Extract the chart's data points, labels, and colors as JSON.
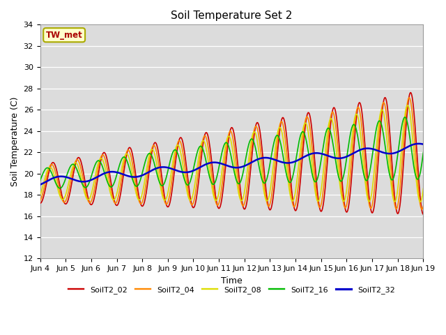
{
  "title": "Soil Temperature Set 2",
  "xlabel": "Time",
  "ylabel": "Soil Temperature (C)",
  "ylim": [
    12,
    34
  ],
  "xlim": [
    0,
    15
  ],
  "x_tick_labels": [
    "Jun 4",
    "Jun 5",
    "Jun 6",
    "Jun 7",
    "Jun 8",
    "Jun 9",
    "Jun 10",
    "Jun 11",
    "Jun 12",
    "Jun 13",
    "Jun 14",
    "Jun 15",
    "Jun 16",
    "Jun 17",
    "Jun 18",
    "Jun 19"
  ],
  "bg_color": "#dcdcdc",
  "fig_color": "#ffffff",
  "tw_met_label": "TW_met",
  "tw_met_color": "#aa0000",
  "tw_met_bg": "#ffffcc",
  "tw_met_border": "#aaaa00",
  "legend_labels": [
    "SoilT2_02",
    "SoilT2_04",
    "SoilT2_08",
    "SoilT2_16",
    "SoilT2_32"
  ],
  "line_colors": [
    "#cc0000",
    "#ff8800",
    "#dddd00",
    "#00bb00",
    "#0000cc"
  ],
  "line_widths": [
    1.2,
    1.2,
    1.2,
    1.2,
    1.8
  ],
  "title_fontsize": 11,
  "axis_fontsize": 9,
  "tick_fontsize": 8
}
